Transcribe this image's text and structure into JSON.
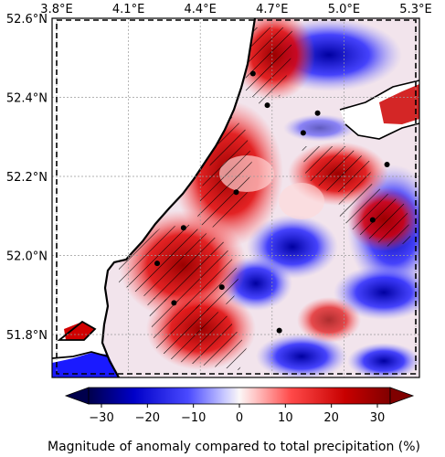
{
  "map": {
    "x_ticks": [
      {
        "label": "3.8°E",
        "lon": 3.8
      },
      {
        "label": "4.1°E",
        "lon": 4.1
      },
      {
        "label": "4.4°E",
        "lon": 4.4
      },
      {
        "label": "4.7°E",
        "lon": 4.7
      },
      {
        "label": "5.0°E",
        "lon": 5.0
      },
      {
        "label": "5.3°E",
        "lon": 5.3
      }
    ],
    "y_ticks": [
      {
        "label": "52.6°N",
        "lat": 52.6
      },
      {
        "label": "52.4°N",
        "lat": 52.4
      },
      {
        "label": "52.2°N",
        "lat": 52.2
      },
      {
        "label": "52.0°N",
        "lat": 52.0
      },
      {
        "label": "51.8°N",
        "lat": 51.8
      }
    ],
    "lon_range": [
      3.78,
      5.3
    ],
    "lat_range": [
      51.7,
      52.6
    ],
    "gridlines": true,
    "hatching": "diagonal",
    "colors": {
      "sea": "#ffffff",
      "coast": "#000000",
      "dashed_box": "#000000",
      "station": "#000000"
    },
    "stations": [
      {
        "lon": 4.62,
        "lat": 52.46
      },
      {
        "lon": 4.68,
        "lat": 52.38
      },
      {
        "lon": 4.89,
        "lat": 52.36
      },
      {
        "lon": 4.83,
        "lat": 52.31
      },
      {
        "lon": 5.18,
        "lat": 52.23
      },
      {
        "lon": 4.55,
        "lat": 52.16
      },
      {
        "lon": 5.12,
        "lat": 52.09
      },
      {
        "lon": 4.33,
        "lat": 52.07
      },
      {
        "lon": 4.22,
        "lat": 51.98
      },
      {
        "lon": 4.49,
        "lat": 51.92
      },
      {
        "lon": 4.29,
        "lat": 51.88
      },
      {
        "lon": 4.73,
        "lat": 51.81
      }
    ]
  },
  "colorbar": {
    "tick_labels": [
      "−30",
      "−20",
      "−10",
      "0",
      "10",
      "20",
      "30"
    ],
    "range": [
      -30,
      30
    ],
    "extend": "both",
    "colormap": "seismic",
    "title": "Magnitude of anomaly compared to total precipitation (%)"
  }
}
